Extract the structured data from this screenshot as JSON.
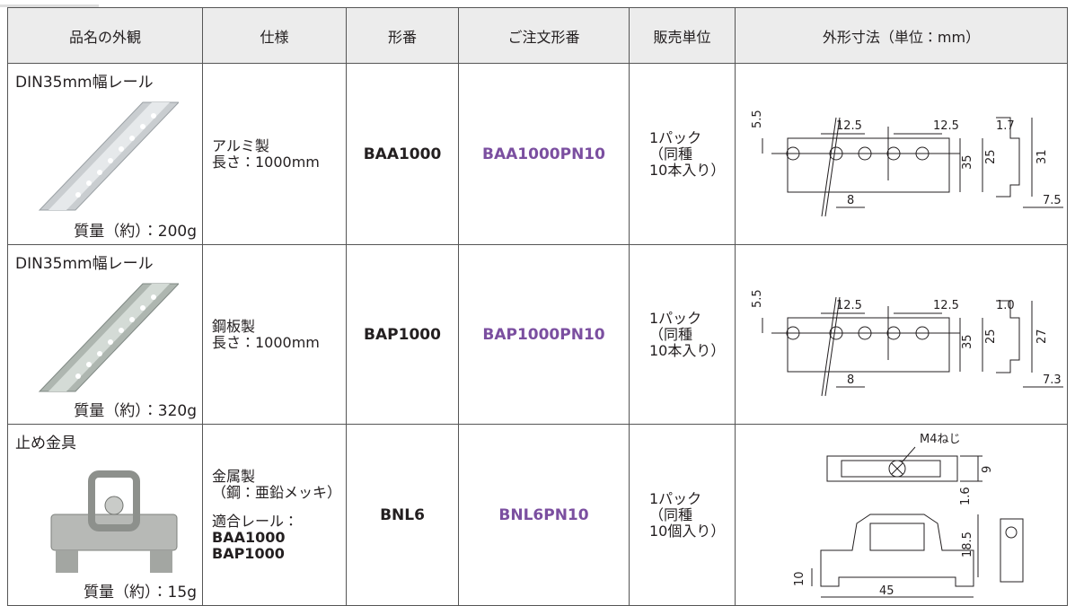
{
  "table": {
    "headers": [
      "品名の外観",
      "仕様",
      "形番",
      "ご注文形番",
      "販売単位",
      "外形寸法（単位：mm）"
    ],
    "rows": [
      {
        "name": "DIN35mm幅レール",
        "weight": "質量（約）：200g",
        "spec": [
          "アルミ製",
          "長さ：1000mm"
        ],
        "model": "BAA1000",
        "order": "BAA1000PN10",
        "unit": [
          "1パック",
          "（同種",
          "10本入り）"
        ],
        "dims": [
          "12.5",
          "12.5",
          "1.7",
          "5.5",
          "35",
          "25",
          "31",
          "8",
          "7.5"
        ]
      },
      {
        "name": "DIN35mm幅レール",
        "weight": "質量（約）：320g",
        "spec": [
          "鋼板製",
          "長さ：1000mm"
        ],
        "model": "BAP1000",
        "order": "BAP1000PN10",
        "unit": [
          "1パック",
          "（同種",
          "10本入り）"
        ],
        "dims": [
          "12.5",
          "12.5",
          "1.0",
          "5.5",
          "35",
          "25",
          "27",
          "8",
          "7.3"
        ]
      },
      {
        "name": "止め金具",
        "weight": "質量（約）：15g",
        "spec": [
          "金属製",
          "（鋼：亜鉛メッキ）"
        ],
        "compatible_label": "適合レール：",
        "compatible": [
          "BAA1000",
          "BAP1000"
        ],
        "model": "BNL6",
        "order": "BNL6PN10",
        "unit": [
          "1パック",
          "（同種",
          "10個入り）"
        ],
        "dims": [
          "M4ねじ",
          "9",
          "1.6",
          "18.5",
          "10",
          "45"
        ]
      }
    ]
  }
}
